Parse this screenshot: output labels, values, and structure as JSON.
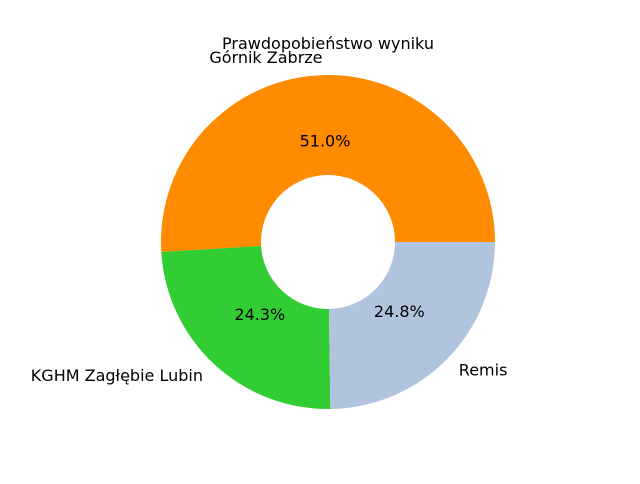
{
  "chart_data": {
    "type": "pie",
    "variant": "donut",
    "title": "Prawdopobieństwo wyniku",
    "categories": [
      "Górnik Zabrze",
      "KGHM Zagłębie Lubin",
      "Remis"
    ],
    "values": [
      51.0,
      24.3,
      24.8
    ],
    "value_labels": [
      "51.0%",
      "24.3%",
      "24.8%"
    ],
    "colors": [
      "#ff8c00",
      "#32cd32",
      "#b0c4de"
    ],
    "start_angle": 0,
    "direction": "counterclockwise",
    "legend": "none"
  }
}
